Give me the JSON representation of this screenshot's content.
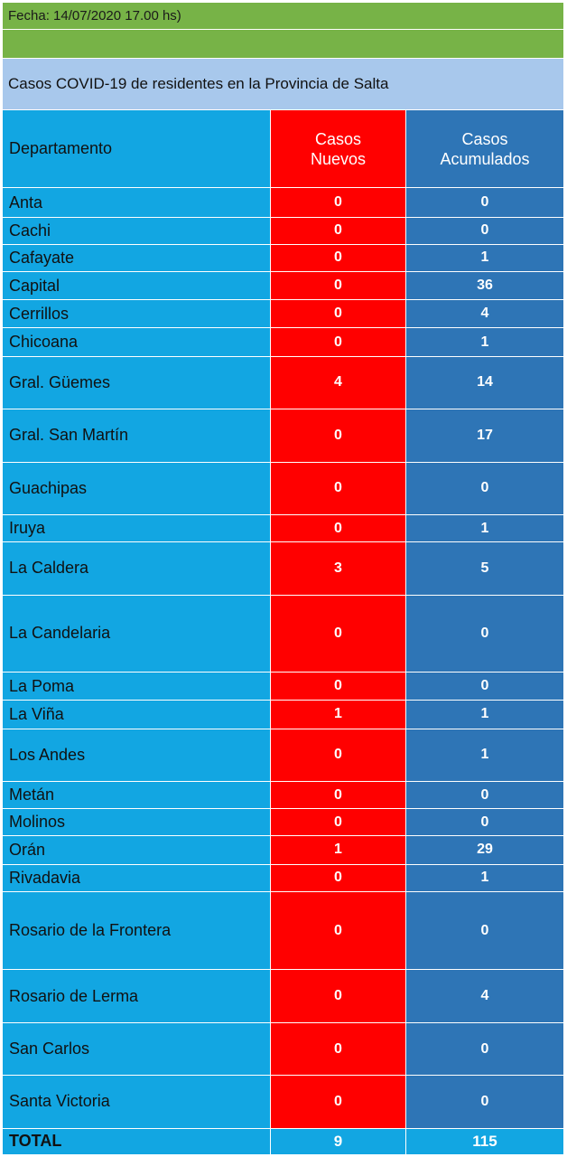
{
  "header": {
    "fecha": "Fecha: 14/07/2020 17.00 hs)",
    "title": "Casos COVID-19 de residentes en la Provincia de Salta"
  },
  "columns": {
    "departamento": "Departamento",
    "nuevos_line1": "Casos",
    "nuevos_line2": "Nuevos",
    "acumulados_line1": "Casos",
    "acumulados_line2": "Acumulados"
  },
  "rows": [
    {
      "departamento": "Anta",
      "nuevos": "0",
      "acumulados": "0"
    },
    {
      "departamento": "Cachi",
      "nuevos": "0",
      "acumulados": "0"
    },
    {
      "departamento": "Cafayate",
      "nuevos": "0",
      "acumulados": "1"
    },
    {
      "departamento": "Capital",
      "nuevos": "0",
      "acumulados": "36"
    },
    {
      "departamento": "Cerrillos",
      "nuevos": "0",
      "acumulados": "4"
    },
    {
      "departamento": "Chicoana",
      "nuevos": "0",
      "acumulados": "1"
    },
    {
      "departamento": "Gral. Güemes",
      "nuevos": "4",
      "acumulados": "14"
    },
    {
      "departamento": "Gral. San Martín",
      "nuevos": "0",
      "acumulados": "17"
    },
    {
      "departamento": "Guachipas",
      "nuevos": "0",
      "acumulados": "0"
    },
    {
      "departamento": "Iruya",
      "nuevos": "0",
      "acumulados": "1"
    },
    {
      "departamento": "La Caldera",
      "nuevos": "3",
      "acumulados": "5"
    },
    {
      "departamento": "La Candelaria",
      "nuevos": "0",
      "acumulados": "0"
    },
    {
      "departamento": "La Poma",
      "nuevos": "0",
      "acumulados": "0"
    },
    {
      "departamento": "La Viña",
      "nuevos": "1",
      "acumulados": "1"
    },
    {
      "departamento": "Los Andes",
      "nuevos": "0",
      "acumulados": "1"
    },
    {
      "departamento": "Metán",
      "nuevos": "0",
      "acumulados": "0"
    },
    {
      "departamento": "Molinos",
      "nuevos": "0",
      "acumulados": "0"
    },
    {
      "departamento": "Orán",
      "nuevos": "1",
      "acumulados": "29"
    },
    {
      "departamento": "Rivadavia",
      "nuevos": "0",
      "acumulados": "1"
    },
    {
      "departamento": "Rosario de la Frontera",
      "nuevos": "0",
      "acumulados": "0"
    },
    {
      "departamento": "Rosario de Lerma",
      "nuevos": "0",
      "acumulados": "4"
    },
    {
      "departamento": "San Carlos",
      "nuevos": "0",
      "acumulados": "0"
    },
    {
      "departamento": "Santa Victoria",
      "nuevos": "0",
      "acumulados": "0"
    }
  ],
  "total": {
    "label": "TOTAL",
    "nuevos": "9",
    "acumulados": "115"
  },
  "colors": {
    "header_green": "#77b347",
    "title_band": "#a8c8ec",
    "departamento_blue": "#12a6e2",
    "nuevos_red": "#ff0000",
    "acumulados_blue": "#2e75b6"
  }
}
